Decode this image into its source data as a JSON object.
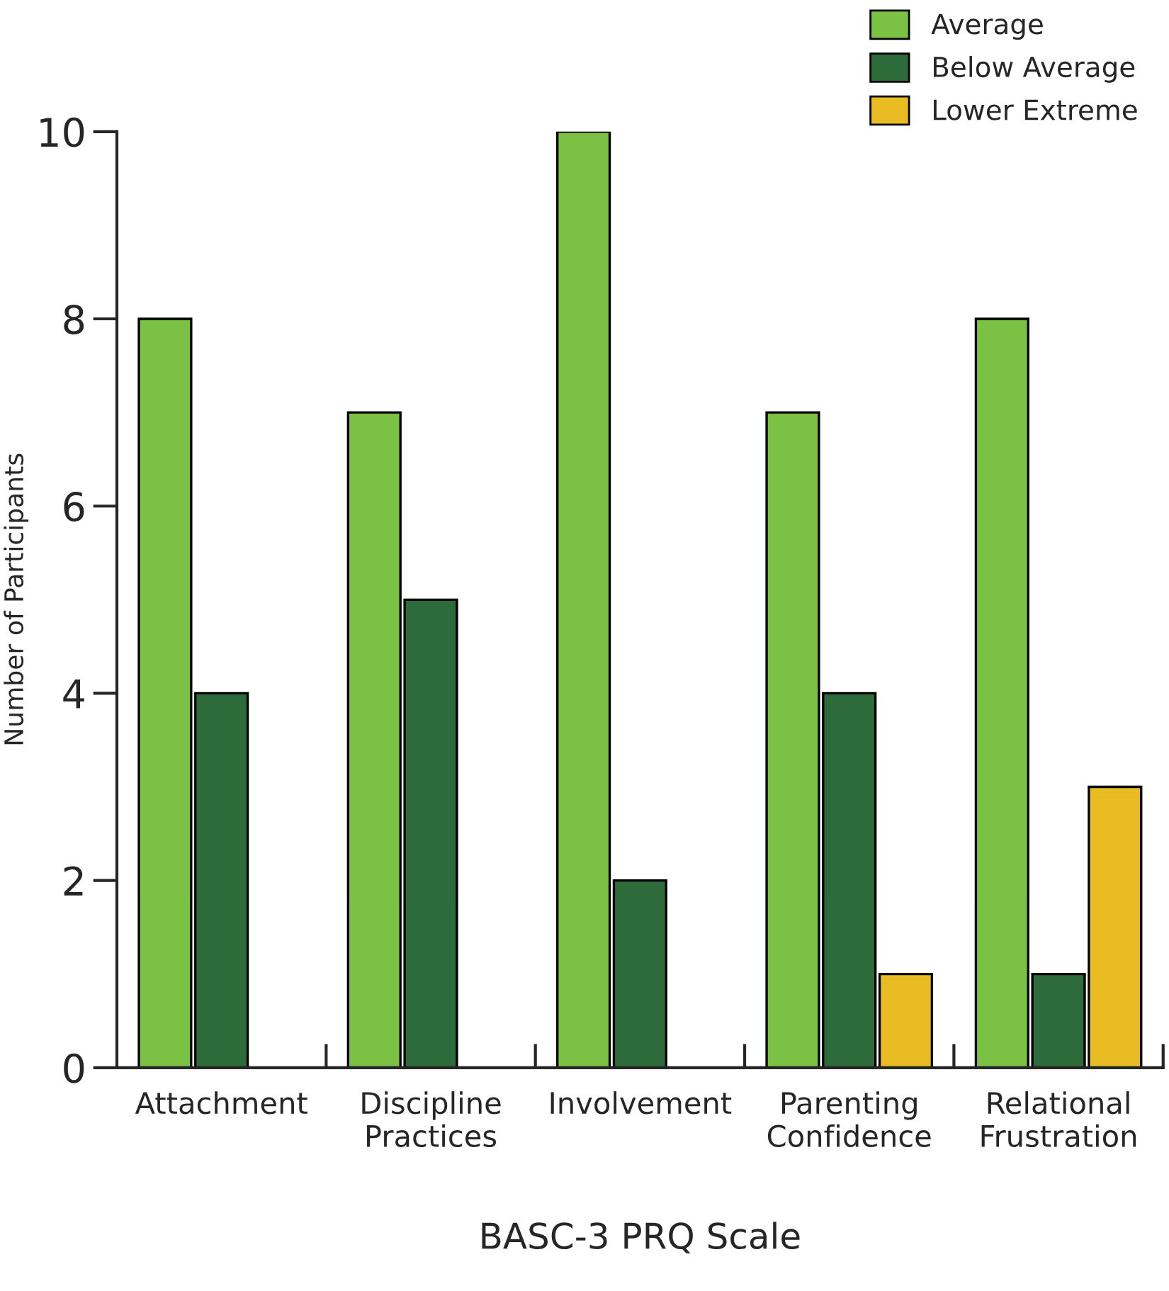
{
  "chart_data": {
    "type": "bar",
    "xlabel": "BASC-3 PRQ Scale",
    "ylabel": "Number of Participants",
    "categories": [
      "Attachment",
      "Discipline\nPractices",
      "Involvement",
      "Parenting\nConfidence",
      "Relational\nFrustration"
    ],
    "series": [
      {
        "name": "Average",
        "color": "#7bc143",
        "values": [
          8,
          7,
          10,
          7,
          8
        ]
      },
      {
        "name": "Below Average",
        "color": "#2e6b3a",
        "values": [
          4,
          5,
          2,
          4,
          1
        ]
      },
      {
        "name": "Lower Extreme",
        "color": "#e8bc22",
        "values": [
          null,
          null,
          null,
          1,
          3
        ]
      }
    ],
    "ylim": [
      0,
      10
    ],
    "yticks": [
      0,
      2,
      4,
      6,
      8,
      10
    ],
    "grid": false,
    "legend": "top right"
  }
}
